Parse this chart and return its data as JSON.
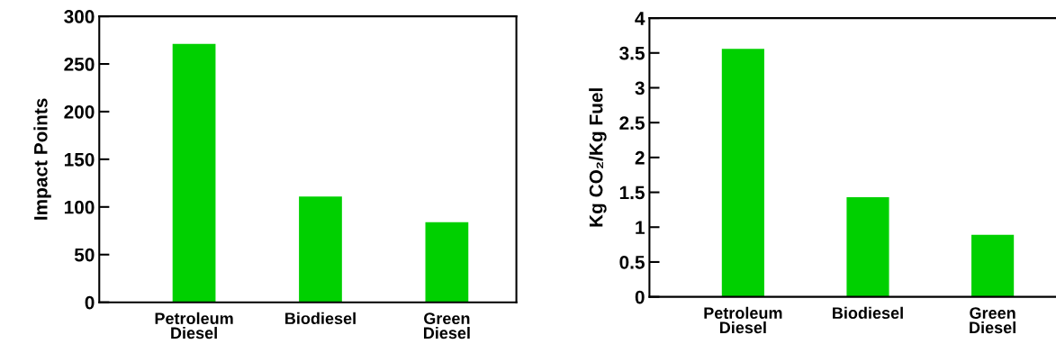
{
  "chart_data": [
    {
      "type": "bar",
      "ylabel": "Impact Points",
      "categories": [
        "Petroleum\nDiesel",
        "Biodiesel",
        "Green\nDiesel"
      ],
      "values": [
        271,
        111,
        84
      ],
      "color": "#00d000",
      "ylim": [
        0,
        300
      ],
      "yticks": [
        0,
        50,
        100,
        150,
        200,
        250,
        300
      ],
      "grid": false
    },
    {
      "type": "bar",
      "ylabel": "Kg CO₂/Kg Fuel",
      "categories": [
        "Petroleum\nDiesel",
        "Biodiesel",
        "Green\nDiesel"
      ],
      "values": [
        3.56,
        1.43,
        0.89
      ],
      "color": "#00d000",
      "ylim": [
        0,
        4
      ],
      "yticks": [
        0,
        0.5,
        1,
        1.5,
        2,
        2.5,
        3,
        3.5,
        4
      ],
      "grid": false
    }
  ]
}
